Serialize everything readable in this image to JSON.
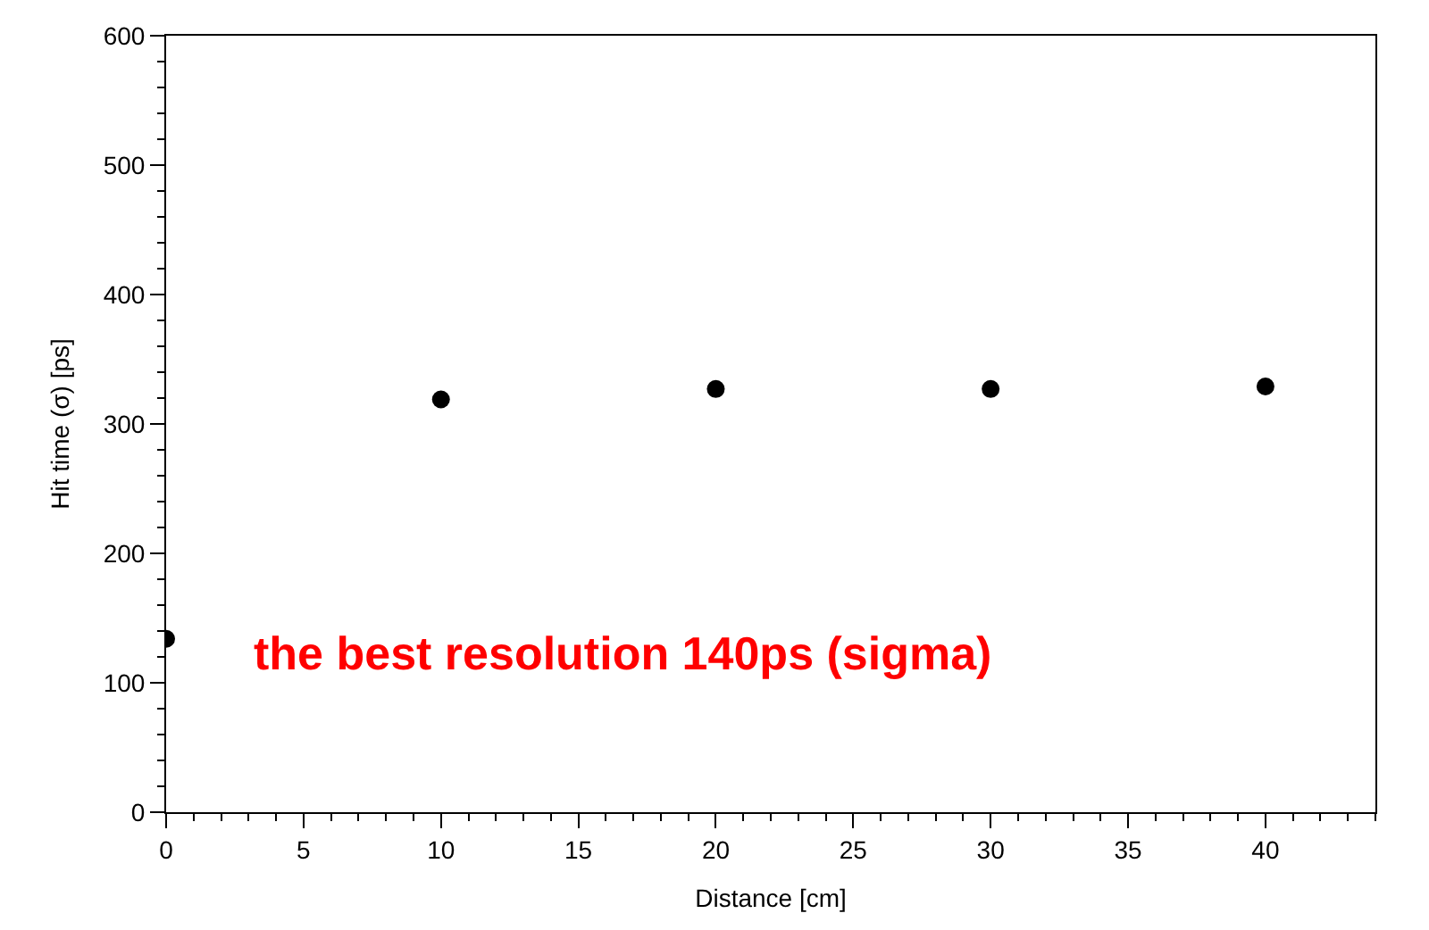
{
  "chart_data": {
    "type": "scatter",
    "xlabel": "Distance [cm]",
    "ylabel": "Hit time (σ) [ps]",
    "x": [
      0,
      10,
      20,
      30,
      40
    ],
    "series": [
      {
        "color": "#000000",
        "values": [
          134,
          319,
          327,
          327,
          329
        ]
      }
    ],
    "xlim": [
      0,
      44
    ],
    "ylim": [
      0,
      600
    ],
    "xticks": [
      0,
      5,
      10,
      15,
      20,
      25,
      30,
      35,
      40
    ],
    "yticks": [
      0,
      100,
      200,
      300,
      400,
      500,
      600
    ],
    "marker": "circle",
    "annotations": [
      "the best resolution 140ps (sigma)"
    ]
  }
}
